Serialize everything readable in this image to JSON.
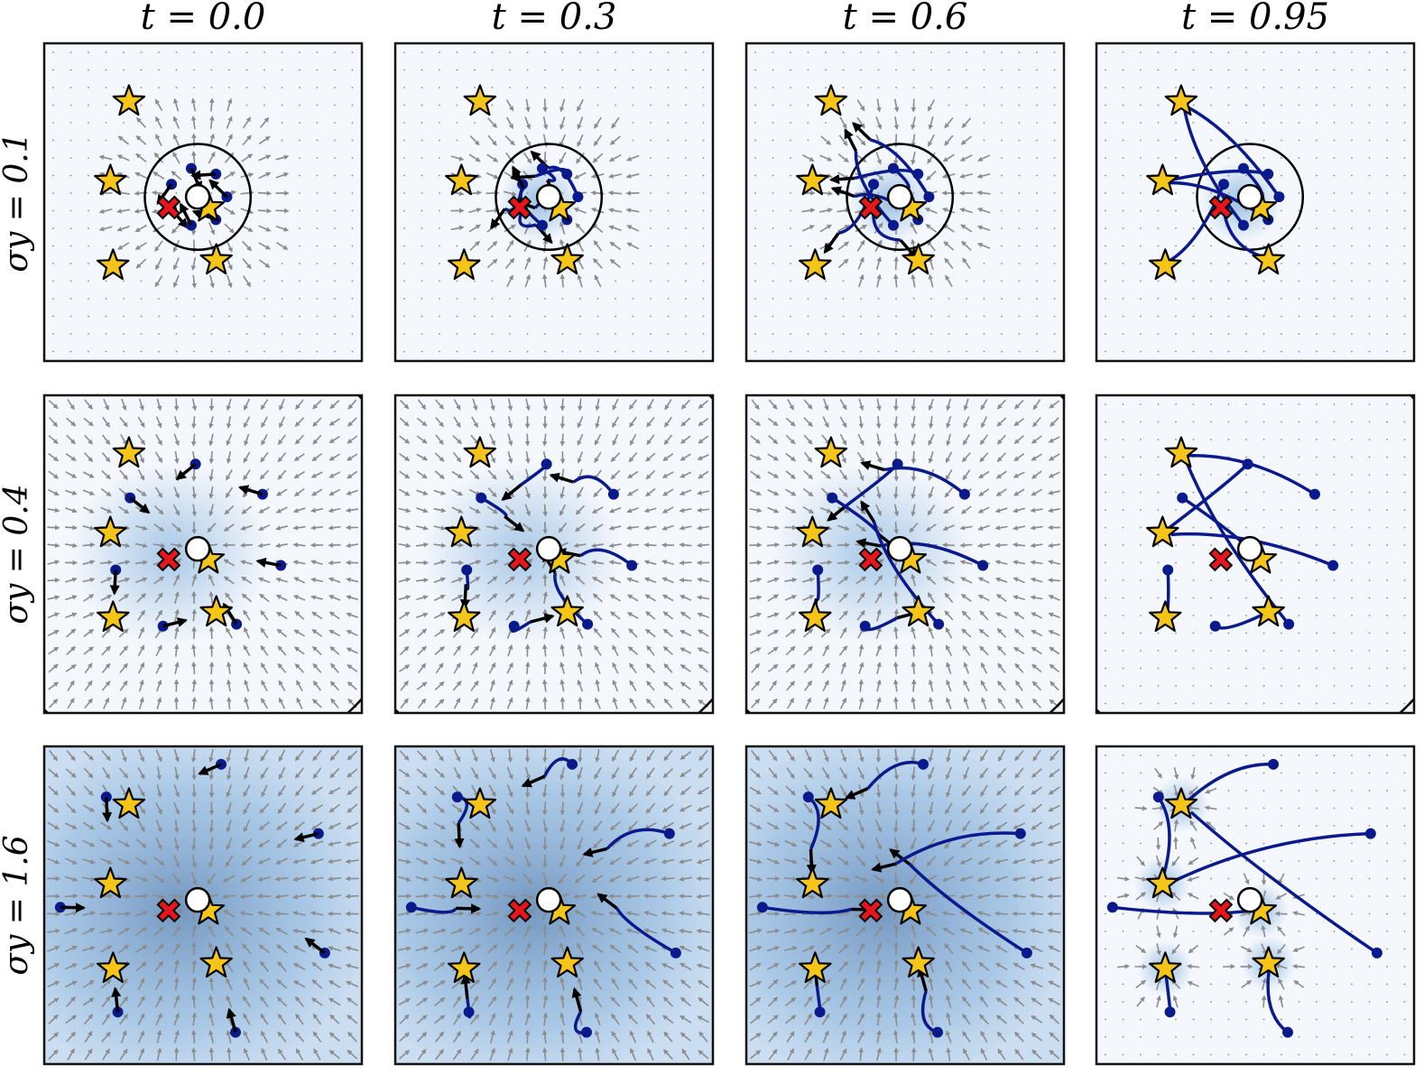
{
  "columns": [
    {
      "label": "t = 0.0",
      "t": 0.0
    },
    {
      "label": "t = 0.3",
      "t": 0.3
    },
    {
      "label": "t = 0.6",
      "t": 0.6
    },
    {
      "label": "t = 0.95",
      "t": 0.95
    }
  ],
  "rows": [
    {
      "label": "σy = 0.1",
      "sigma_y": 0.1
    },
    {
      "label": "σy = 0.4",
      "sigma_y": 0.4
    },
    {
      "label": "σy = 1.6",
      "sigma_y": 1.6
    }
  ],
  "scene": {
    "stars": [
      [
        -1.4,
        1.9
      ],
      [
        -1.75,
        0.4
      ],
      [
        0.1,
        -0.1
      ],
      [
        -1.7,
        -1.2
      ],
      [
        0.25,
        -1.1
      ]
    ],
    "cross": [
      -0.65,
      -0.1
    ],
    "observation": [
      -0.1,
      0.1
    ]
  },
  "colors": {
    "star_fill": "#f5c518",
    "cross_fill": "#e8151b",
    "trajectory": "#0a1a8c",
    "field_arrow": "#8c8c8c",
    "density": "#6fa8d8",
    "frame": "#111111"
  }
}
